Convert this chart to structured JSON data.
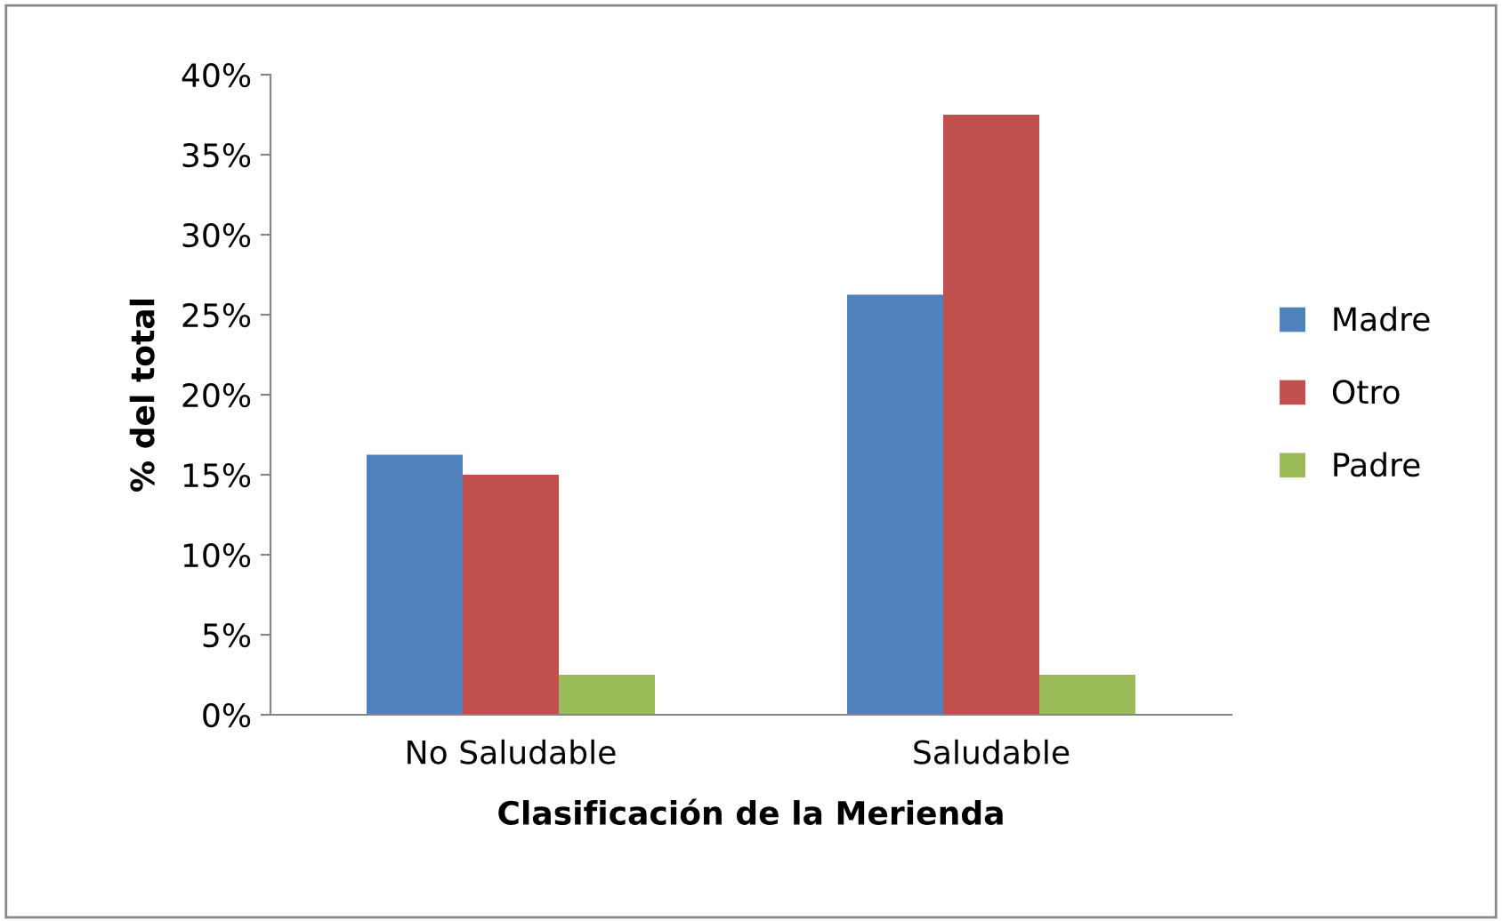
{
  "chart_data": {
    "type": "bar",
    "xlabel": "Clasificación de la Merienda",
    "ylabel": "% del total",
    "categories": [
      "No Saludable",
      "Saludable"
    ],
    "series": [
      {
        "name": "Madre",
        "color": "#4f81bd",
        "values": [
          16.25,
          26.25
        ]
      },
      {
        "name": "Otro",
        "color": "#c0504d",
        "values": [
          15,
          37.5
        ]
      },
      {
        "name": "Padre",
        "color": "#9bbb59",
        "values": [
          2.5,
          2.5
        ]
      }
    ],
    "ylim": [
      0,
      40
    ],
    "yticks": [
      {
        "value": 0,
        "label": "0%"
      },
      {
        "value": 5,
        "label": "5%"
      },
      {
        "value": 10,
        "label": "10%"
      },
      {
        "value": 15,
        "label": "15%"
      },
      {
        "value": 20,
        "label": "20%"
      },
      {
        "value": 25,
        "label": "25%"
      },
      {
        "value": 30,
        "label": "30%"
      },
      {
        "value": 35,
        "label": "35%"
      },
      {
        "value": 40,
        "label": "40%"
      }
    ],
    "grid": false,
    "legend": "right"
  }
}
